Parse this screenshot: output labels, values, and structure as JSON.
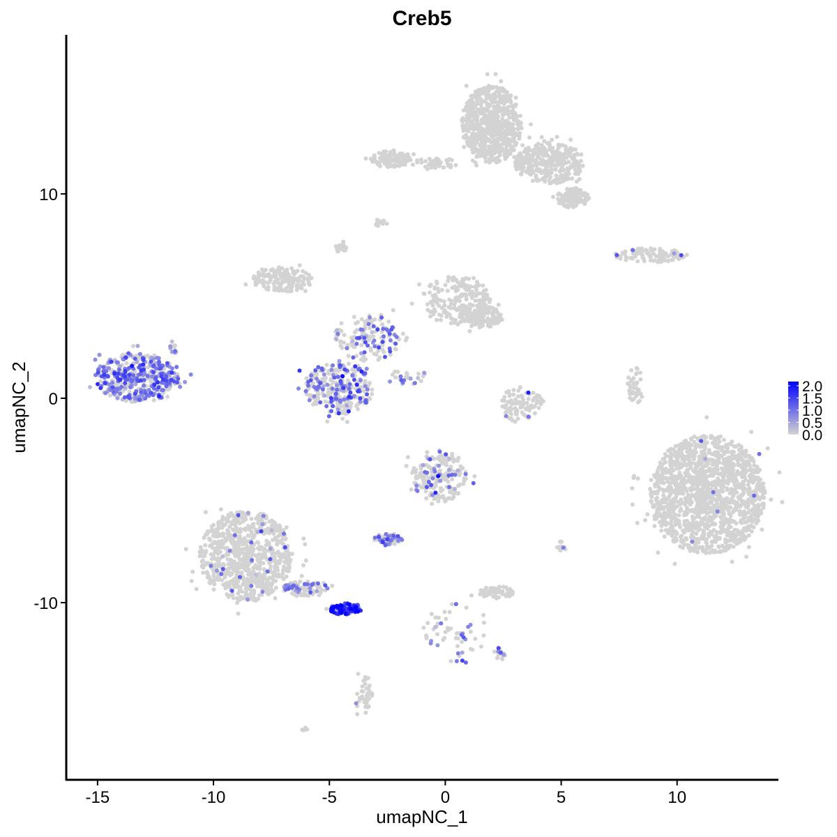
{
  "chart_data": {
    "type": "scatter",
    "title": "Creb5",
    "xlabel": "umapNC_1",
    "ylabel": "umapNC_2",
    "xlim": [
      -16.35,
      14.37
    ],
    "ylim": [
      -18.67,
      17.78
    ],
    "xticks": [
      -15,
      -10,
      -5,
      0,
      5,
      10
    ],
    "xtick_labels": [
      "-15",
      "-10",
      "-5",
      "0",
      "5",
      "10"
    ],
    "yticks": [
      -10,
      0,
      10
    ],
    "ytick_labels": [
      "-10",
      "0",
      "10"
    ],
    "grid": false,
    "legend": {
      "placement": "right",
      "type": "colorbar",
      "range": [
        0,
        2
      ],
      "ticks": [
        "0.0",
        "0.5",
        "1.0",
        "1.5",
        "2.0"
      ],
      "low_color": "#D3D3D3",
      "high_color": "#0000FF"
    },
    "clusters": [
      {
        "cx": 2.0,
        "cy": 13.4,
        "rx": 1.3,
        "ry": 1.9,
        "n": 700,
        "expr_frac": 0.0,
        "expr_mean": 0.0
      },
      {
        "cx": 4.5,
        "cy": 11.5,
        "rx": 1.5,
        "ry": 1.0,
        "n": 350,
        "expr_frac": 0.0,
        "expr_mean": 0.0
      },
      {
        "cx": 5.5,
        "cy": 9.8,
        "rx": 0.7,
        "ry": 0.5,
        "n": 120,
        "expr_frac": 0.0,
        "expr_mean": 0.0
      },
      {
        "cx": -2.4,
        "cy": 11.7,
        "rx": 0.9,
        "ry": 0.4,
        "n": 110,
        "expr_frac": 0.0,
        "expr_mean": 0.0
      },
      {
        "cx": -0.5,
        "cy": 11.5,
        "rx": 1.0,
        "ry": 0.3,
        "n": 40,
        "expr_frac": 0.0,
        "expr_mean": 0.0
      },
      {
        "cx": -2.8,
        "cy": 8.6,
        "rx": 0.3,
        "ry": 0.2,
        "n": 15,
        "expr_frac": 0.0,
        "expr_mean": 0.0
      },
      {
        "cx": -4.5,
        "cy": 7.4,
        "rx": 0.25,
        "ry": 0.3,
        "n": 20,
        "expr_frac": 0.0,
        "expr_mean": 0.0
      },
      {
        "cx": -7.0,
        "cy": 5.8,
        "rx": 1.3,
        "ry": 0.6,
        "n": 150,
        "expr_frac": 0.0,
        "expr_mean": 0.0
      },
      {
        "cx": 0.5,
        "cy": 4.8,
        "rx": 1.5,
        "ry": 1.2,
        "n": 200,
        "expr_frac": 0.0,
        "expr_mean": 0.0
      },
      {
        "cx": 1.5,
        "cy": 4.0,
        "rx": 0.9,
        "ry": 0.6,
        "n": 150,
        "expr_frac": 0.0,
        "expr_mean": 0.0
      },
      {
        "cx": -3.3,
        "cy": 3.0,
        "rx": 1.5,
        "ry": 1.2,
        "n": 150,
        "expr_frac": 0.3,
        "expr_mean": 0.9
      },
      {
        "cx": -4.6,
        "cy": 0.5,
        "rx": 1.5,
        "ry": 1.3,
        "n": 300,
        "expr_frac": 0.35,
        "expr_mean": 0.9
      },
      {
        "cx": -1.6,
        "cy": 1.0,
        "rx": 0.9,
        "ry": 0.4,
        "n": 25,
        "expr_frac": 0.2,
        "expr_mean": 0.7
      },
      {
        "cx": -13.3,
        "cy": 1.0,
        "rx": 1.8,
        "ry": 1.2,
        "n": 420,
        "expr_frac": 0.6,
        "expr_mean": 0.8
      },
      {
        "cx": 3.3,
        "cy": -0.3,
        "rx": 0.9,
        "ry": 0.9,
        "n": 100,
        "expr_frac": 0.03,
        "expr_mean": 1.2
      },
      {
        "cx": 8.8,
        "cy": 7.0,
        "rx": 1.6,
        "ry": 0.35,
        "n": 100,
        "expr_frac": 0.02,
        "expr_mean": 0.8
      },
      {
        "cx": 8.2,
        "cy": 0.6,
        "rx": 0.35,
        "ry": 0.9,
        "n": 40,
        "expr_frac": 0.0,
        "expr_mean": 0.0
      },
      {
        "cx": 11.3,
        "cy": -4.7,
        "rx": 2.5,
        "ry": 2.9,
        "n": 1500,
        "expr_frac": 0.005,
        "expr_mean": 0.8
      },
      {
        "cx": -0.3,
        "cy": -3.8,
        "rx": 1.2,
        "ry": 1.3,
        "n": 200,
        "expr_frac": 0.15,
        "expr_mean": 0.9
      },
      {
        "cx": -2.5,
        "cy": -6.9,
        "rx": 0.6,
        "ry": 0.3,
        "n": 60,
        "expr_frac": 0.5,
        "expr_mean": 0.7
      },
      {
        "cx": -8.6,
        "cy": -7.7,
        "rx": 2.0,
        "ry": 2.2,
        "n": 800,
        "expr_frac": 0.03,
        "expr_mean": 0.7
      },
      {
        "cx": -6.0,
        "cy": -9.3,
        "rx": 1.0,
        "ry": 0.4,
        "n": 80,
        "expr_frac": 0.3,
        "expr_mean": 0.8
      },
      {
        "cx": -4.3,
        "cy": -10.3,
        "rx": 0.7,
        "ry": 0.3,
        "n": 80,
        "expr_frac": 0.9,
        "expr_mean": 1.6
      },
      {
        "cx": 2.2,
        "cy": -9.5,
        "rx": 0.8,
        "ry": 0.3,
        "n": 60,
        "expr_frac": 0.0,
        "expr_mean": 0.0
      },
      {
        "cx": 5.0,
        "cy": -7.3,
        "rx": 0.2,
        "ry": 0.3,
        "n": 12,
        "expr_frac": 0.1,
        "expr_mean": 0.8
      },
      {
        "cx": 0.5,
        "cy": -11.5,
        "rx": 1.5,
        "ry": 1.5,
        "n": 60,
        "expr_frac": 0.2,
        "expr_mean": 0.8
      },
      {
        "cx": 2.4,
        "cy": -12.5,
        "rx": 0.3,
        "ry": 0.3,
        "n": 15,
        "expr_frac": 0.4,
        "expr_mean": 0.9
      },
      {
        "cx": -3.5,
        "cy": -14.5,
        "rx": 0.4,
        "ry": 0.9,
        "n": 40,
        "expr_frac": 0.05,
        "expr_mean": 1.0
      },
      {
        "cx": -6.1,
        "cy": -16.2,
        "rx": 0.15,
        "ry": 0.1,
        "n": 6,
        "expr_frac": 0.0,
        "expr_mean": 0.0
      },
      {
        "cx": -11.7,
        "cy": 2.5,
        "rx": 0.3,
        "ry": 0.3,
        "n": 10,
        "expr_frac": 0.5,
        "expr_mean": 0.6
      }
    ]
  }
}
